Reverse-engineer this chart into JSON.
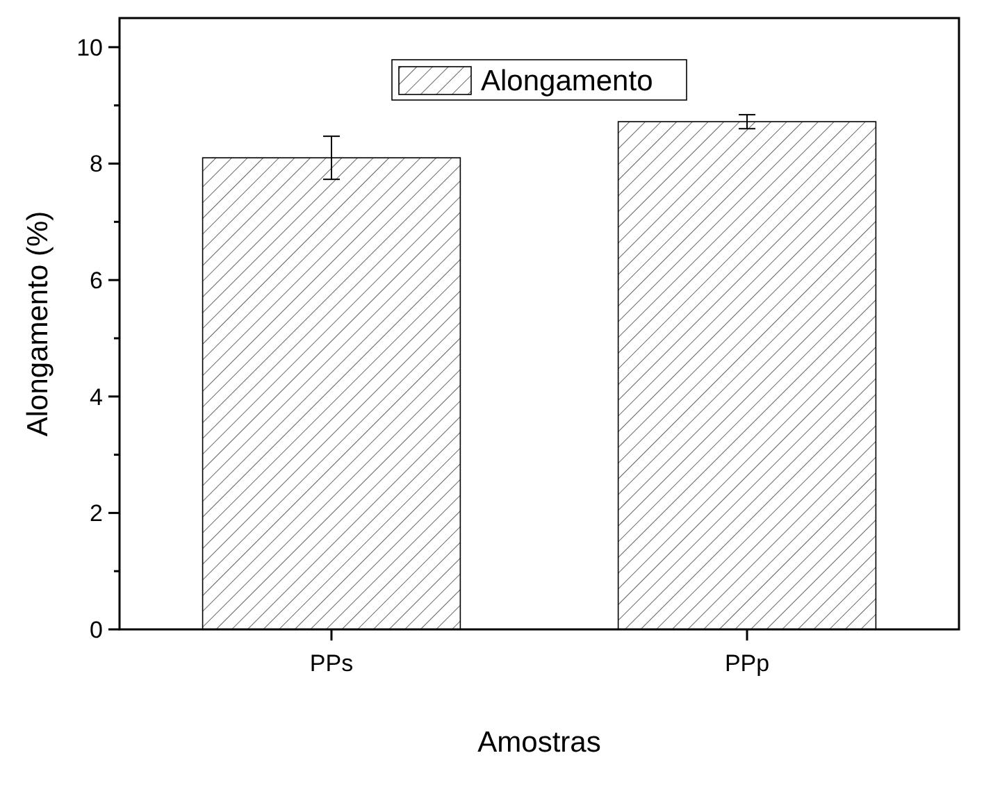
{
  "chart_data": {
    "type": "bar",
    "xlabel": "Amostras",
    "ylabel": "Alongamento (%)",
    "categories": [
      "PPs",
      "PPp"
    ],
    "series": [
      {
        "name": "Alongamento",
        "color": "#000000",
        "values": [
          8.1,
          8.72
        ],
        "errors": [
          0.37,
          0.12
        ]
      }
    ],
    "ylim": [
      0,
      10.5
    ],
    "yticks": [
      0,
      {
        "value": 1,
        "label": null
      },
      2,
      {
        "value": 3,
        "label": null
      },
      4,
      {
        "value": 5,
        "label": null
      },
      6,
      {
        "value": 7,
        "label": null
      },
      8,
      {
        "value": 9,
        "label": null
      },
      10
    ],
    "grid": false,
    "legend": "top"
  }
}
